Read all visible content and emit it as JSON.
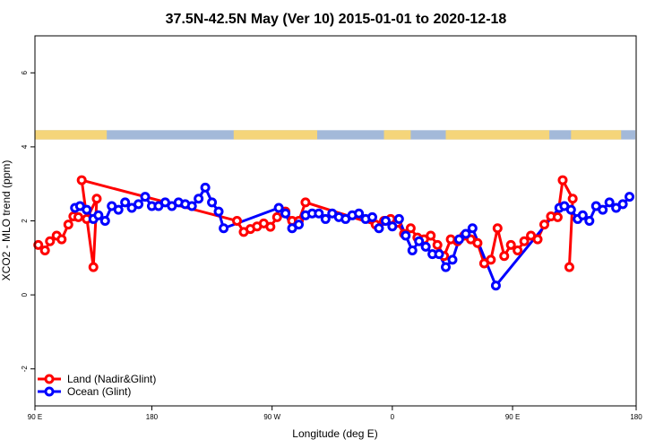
{
  "chart_data": {
    "type": "line",
    "title": "37.5N-42.5N May (Ver 10)   2015-01-01 to 2020-12-18",
    "xlabel": "Longitude (deg E)",
    "ylabel": "XCO2 - MLO trend (ppm)",
    "xlim": [
      90,
      450
    ],
    "ylim": [
      -3,
      7
    ],
    "x_ticks": [
      {
        "value": 90,
        "label": "90 E"
      },
      {
        "value": 160,
        "label": "180"
      },
      {
        "value": 232,
        "label": "90 W"
      },
      {
        "value": 304,
        "label": "0"
      },
      {
        "value": 376,
        "label": "90 E"
      },
      {
        "value": 450,
        "label": "180"
      }
    ],
    "y_ticks": [
      {
        "value": -2,
        "label": "-2"
      },
      {
        "value": 0,
        "label": "0"
      },
      {
        "value": 2,
        "label": "2"
      },
      {
        "value": 4,
        "label": "4"
      },
      {
        "value": 6,
        "label": "6"
      }
    ],
    "legend_position": "bottom-left",
    "land_strip": {
      "y_range": [
        4.2,
        4.45
      ],
      "ocean_color": "#a3b9d9",
      "land_color": "#f5d57a",
      "land_ranges": [
        [
          90,
          133
        ],
        [
          209,
          259
        ],
        [
          299,
          315
        ],
        [
          336,
          398
        ],
        [
          411,
          441
        ]
      ]
    },
    "series": [
      {
        "name": "Land (Nadir&Glint)",
        "color": "#ff0000",
        "points": [
          [
            92,
            1.35
          ],
          [
            96,
            1.2
          ],
          [
            99,
            1.45
          ],
          [
            103,
            1.6
          ],
          [
            106,
            1.5
          ],
          [
            110,
            1.9
          ],
          [
            113,
            2.12
          ],
          [
            116,
            2.1
          ],
          [
            121,
            2.05
          ],
          [
            127,
            2.6
          ],
          [
            125,
            0.75
          ],
          [
            118,
            3.1
          ],
          [
            211,
            2.0
          ],
          [
            215,
            1.7
          ],
          [
            219,
            1.78
          ],
          [
            223,
            1.85
          ],
          [
            227,
            1.93
          ],
          [
            231,
            1.84
          ],
          [
            235,
            2.1
          ],
          [
            240,
            2.25
          ],
          [
            244,
            2.0
          ],
          [
            248,
            2.0
          ],
          [
            252,
            2.5
          ],
          [
            294,
            1.9
          ],
          [
            299,
            2.0
          ],
          [
            303,
            2.05
          ],
          [
            307,
            1.95
          ],
          [
            311,
            1.65
          ],
          [
            315,
            1.8
          ],
          [
            319,
            1.55
          ],
          [
            323,
            1.5
          ],
          [
            327,
            1.6
          ],
          [
            331,
            1.35
          ],
          [
            335,
            1.05
          ],
          [
            339,
            1.5
          ],
          [
            343,
            1.45
          ],
          [
            347,
            1.6
          ],
          [
            351,
            1.5
          ],
          [
            355,
            1.4
          ],
          [
            359,
            0.85
          ],
          [
            363,
            0.95
          ],
          [
            367,
            1.8
          ],
          [
            371,
            1.05
          ],
          [
            375,
            1.35
          ],
          [
            379,
            1.2
          ],
          [
            383,
            1.45
          ],
          [
            387,
            1.6
          ],
          [
            391,
            1.5
          ],
          [
            395,
            1.9
          ],
          [
            399,
            2.12
          ],
          [
            403,
            2.1
          ],
          [
            406,
            3.1
          ],
          [
            412,
            2.6
          ],
          [
            410,
            0.75
          ]
        ]
      },
      {
        "name": "Ocean (Glint)",
        "color": "#0000ff",
        "points": [
          [
            114,
            2.35
          ],
          [
            117,
            2.4
          ],
          [
            121,
            2.3
          ],
          [
            125,
            2.05
          ],
          [
            128,
            2.15
          ],
          [
            132,
            2.0
          ],
          [
            136,
            2.4
          ],
          [
            140,
            2.3
          ],
          [
            144,
            2.5
          ],
          [
            148,
            2.35
          ],
          [
            152,
            2.45
          ],
          [
            156,
            2.65
          ],
          [
            160,
            2.4
          ],
          [
            164,
            2.4
          ],
          [
            168,
            2.5
          ],
          [
            172,
            2.4
          ],
          [
            176,
            2.5
          ],
          [
            180,
            2.45
          ],
          [
            184,
            2.4
          ],
          [
            188,
            2.6
          ],
          [
            192,
            2.9
          ],
          [
            196,
            2.5
          ],
          [
            200,
            2.25
          ],
          [
            203,
            1.8
          ],
          [
            236,
            2.35
          ],
          [
            240,
            2.2
          ],
          [
            244,
            1.8
          ],
          [
            248,
            1.9
          ],
          [
            252,
            2.15
          ],
          [
            256,
            2.2
          ],
          [
            260,
            2.2
          ],
          [
            264,
            2.05
          ],
          [
            268,
            2.2
          ],
          [
            272,
            2.1
          ],
          [
            276,
            2.05
          ],
          [
            280,
            2.15
          ],
          [
            284,
            2.2
          ],
          [
            288,
            2.05
          ],
          [
            292,
            2.1
          ],
          [
            296,
            1.8
          ],
          [
            300,
            2.0
          ],
          [
            304,
            1.85
          ],
          [
            308,
            2.05
          ],
          [
            312,
            1.6
          ],
          [
            316,
            1.2
          ],
          [
            320,
            1.45
          ],
          [
            324,
            1.3
          ],
          [
            328,
            1.1
          ],
          [
            332,
            1.1
          ],
          [
            336,
            0.75
          ],
          [
            340,
            0.95
          ],
          [
            344,
            1.5
          ],
          [
            348,
            1.65
          ],
          [
            352,
            1.8
          ],
          [
            366,
            0.25
          ],
          [
            404,
            2.35
          ],
          [
            407,
            2.4
          ],
          [
            411,
            2.3
          ],
          [
            415,
            2.05
          ],
          [
            418,
            2.15
          ],
          [
            422,
            2.0
          ],
          [
            426,
            2.4
          ],
          [
            430,
            2.3
          ],
          [
            434,
            2.5
          ],
          [
            438,
            2.35
          ],
          [
            442,
            2.45
          ],
          [
            446,
            2.65
          ]
        ]
      }
    ]
  }
}
